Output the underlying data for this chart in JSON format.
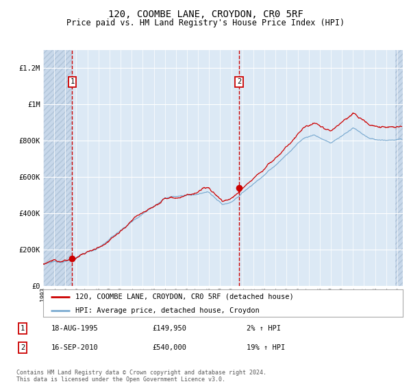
{
  "title": "120, COOMBE LANE, CROYDON, CR0 5RF",
  "subtitle": "Price paid vs. HM Land Registry's House Price Index (HPI)",
  "title_fontsize": 10,
  "subtitle_fontsize": 8.5,
  "ylim": [
    0,
    1300000
  ],
  "yticks": [
    0,
    200000,
    400000,
    600000,
    800000,
    1000000,
    1200000
  ],
  "ytick_labels": [
    "£0",
    "£200K",
    "£400K",
    "£600K",
    "£800K",
    "£1M",
    "£1.2M"
  ],
  "sale1_date_num": 1995.63,
  "sale1_price": 149950,
  "sale2_date_num": 2010.71,
  "sale2_price": 540000,
  "legend_label_red": "120, COOMBE LANE, CROYDON, CR0 5RF (detached house)",
  "legend_label_blue": "HPI: Average price, detached house, Croydon",
  "note1_date": "18-AUG-1995",
  "note1_price": "£149,950",
  "note1_hpi": "2% ↑ HPI",
  "note2_date": "16-SEP-2010",
  "note2_price": "£540,000",
  "note2_hpi": "19% ↑ HPI",
  "footer": "Contains HM Land Registry data © Crown copyright and database right 2024.\nThis data is licensed under the Open Government Licence v3.0.",
  "bg_color": "#dce9f5",
  "hatch_color": "#c8d8ea",
  "grid_color": "#ffffff",
  "red_line_color": "#cc0000",
  "blue_line_color": "#7aaad0",
  "box_color": "#ffffff",
  "sale_dot_color": "#cc0000",
  "xstart": 1993.0,
  "xend": 2025.5
}
